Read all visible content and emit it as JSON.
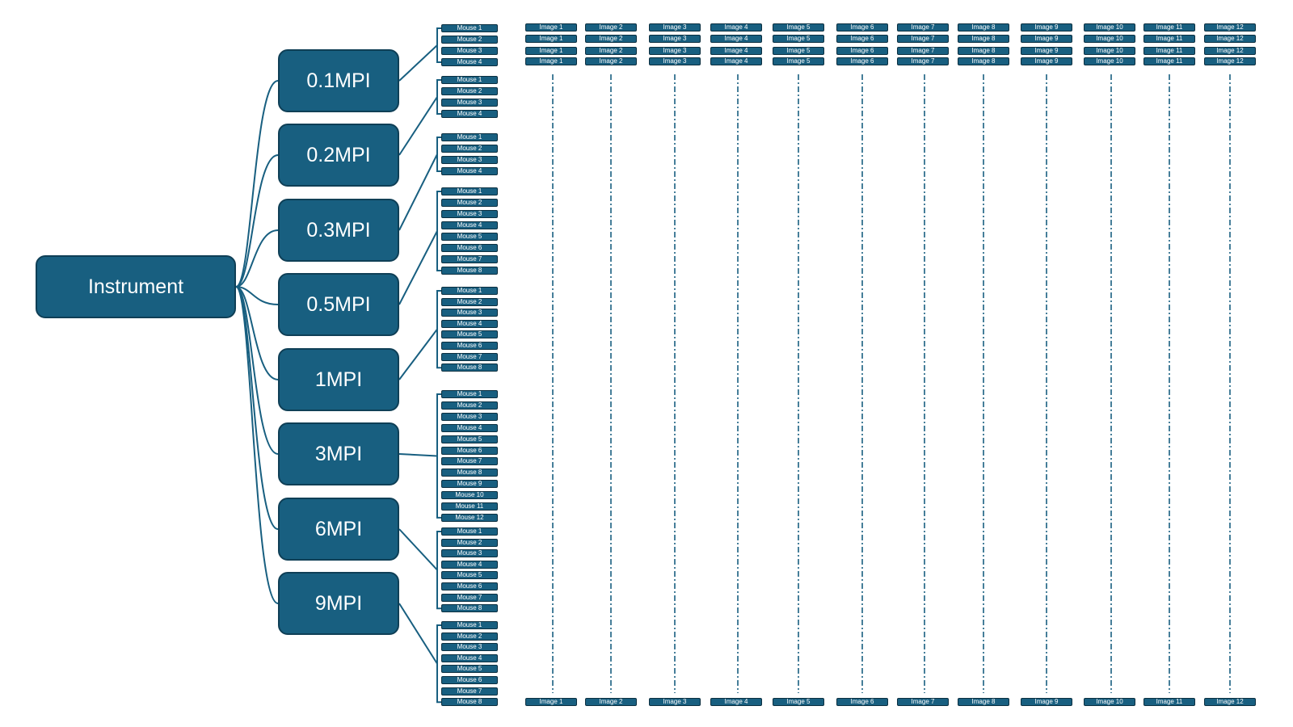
{
  "root": {
    "label": "Instrument"
  },
  "timepoints": [
    {
      "label": "0.1MPI",
      "mice": [
        "Mouse 1",
        "Mouse 2",
        "Mouse 3",
        "Mouse 4"
      ]
    },
    {
      "label": "0.2MPI",
      "mice": [
        "Mouse 1",
        "Mouse 2",
        "Mouse 3",
        "Mouse 4"
      ]
    },
    {
      "label": "0.3MPI",
      "mice": [
        "Mouse 1",
        "Mouse 2",
        "Mouse 3",
        "Mouse 4"
      ]
    },
    {
      "label": "0.5MPI",
      "mice": [
        "Mouse 1",
        "Mouse 2",
        "Mouse 3",
        "Mouse 4",
        "Mouse 5",
        "Mouse 6",
        "Mouse 7",
        "Mouse 8"
      ]
    },
    {
      "label": "1MPI",
      "mice": [
        "Mouse 1",
        "Mouse 2",
        "Mouse 3",
        "Mouse 4",
        "Mouse 5",
        "Mouse 6",
        "Mouse 7",
        "Mouse 8"
      ]
    },
    {
      "label": "3MPI",
      "mice": [
        "Mouse 1",
        "Mouse 2",
        "Mouse 3",
        "Mouse 4",
        "Mouse 5",
        "Mouse 6",
        "Mouse 7",
        "Mouse 8",
        "Mouse 9",
        "Mouse 10",
        "Mouse 11",
        "Mouse 12"
      ]
    },
    {
      "label": "6MPI",
      "mice": [
        "Mouse 1",
        "Mouse 2",
        "Mouse 3",
        "Mouse 4",
        "Mouse 5",
        "Mouse 6",
        "Mouse 7",
        "Mouse 8"
      ]
    },
    {
      "label": "9MPI",
      "mice": [
        "Mouse 1",
        "Mouse 2",
        "Mouse 3",
        "Mouse 4",
        "Mouse 5",
        "Mouse 6",
        "Mouse 7",
        "Mouse 8"
      ]
    }
  ],
  "images": {
    "labels": [
      "Image 1",
      "Image 2",
      "Image 3",
      "Image 4",
      "Image 5",
      "Image 6",
      "Image 7",
      "Image 8",
      "Image 9",
      "Image 10",
      "Image 11",
      "Image 12"
    ],
    "top_rows": 4,
    "bottom_rows": 1
  },
  "colors": {
    "box_fill": "#185f80",
    "box_border": "#0f3f56",
    "line": "#185f80",
    "text": "#ffffff"
  }
}
